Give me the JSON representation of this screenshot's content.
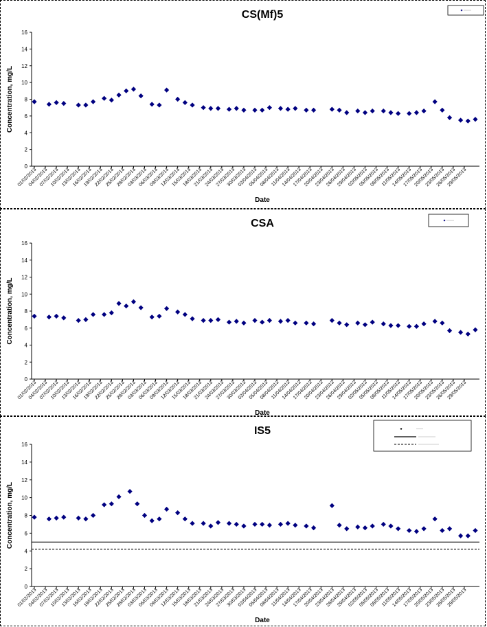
{
  "chart_data": [
    {
      "type": "scatter",
      "title": "CS(Mf)5",
      "xlabel": "Date",
      "ylabel": "Concentration, mg/L",
      "ylim": [
        0,
        16
      ],
      "ytick_step": 2,
      "x_tick_labels": [
        "01/02/2013",
        "04/02/2013",
        "07/02/2013",
        "10/02/2013",
        "13/02/2013",
        "16/02/2013",
        "19/02/2013",
        "22/02/2013",
        "25/02/2013",
        "28/02/2013",
        "03/03/2013",
        "06/03/2013",
        "09/03/2013",
        "12/03/2013",
        "15/03/2013",
        "18/03/2013",
        "21/03/2013",
        "24/03/2013",
        "27/03/2013",
        "30/03/2013",
        "02/04/2013",
        "05/04/2013",
        "08/04/2013",
        "11/04/2013",
        "14/04/2013",
        "17/04/2013",
        "20/04/2013",
        "23/04/2013",
        "26/04/2013",
        "29/04/2013",
        "02/05/2013",
        "05/05/2013",
        "08/05/2013",
        "11/05/2013",
        "14/05/2013",
        "17/05/2013",
        "20/05/2013",
        "23/05/2013",
        "26/05/2013",
        "29/05/2013"
      ],
      "marker_color": "#000080",
      "legend_position": "top-right",
      "series": [
        {
          "points": [
            [
              "01/02/2013",
              7.7
            ],
            [
              "05/02/2013",
              7.4
            ],
            [
              "07/02/2013",
              7.6
            ],
            [
              "09/02/2013",
              7.5
            ],
            [
              "13/02/2013",
              7.3
            ],
            [
              "15/02/2013",
              7.3
            ],
            [
              "17/02/2013",
              7.7
            ],
            [
              "20/02/2013",
              8.1
            ],
            [
              "22/02/2013",
              7.9
            ],
            [
              "24/02/2013",
              8.5
            ],
            [
              "26/02/2013",
              9.0
            ],
            [
              "28/02/2013",
              9.2
            ],
            [
              "02/03/2013",
              8.4
            ],
            [
              "05/03/2013",
              7.4
            ],
            [
              "07/03/2013",
              7.3
            ],
            [
              "09/03/2013",
              9.1
            ],
            [
              "12/03/2013",
              8.0
            ],
            [
              "14/03/2013",
              7.6
            ],
            [
              "16/03/2013",
              7.3
            ],
            [
              "19/03/2013",
              7.0
            ],
            [
              "21/03/2013",
              6.9
            ],
            [
              "23/03/2013",
              6.9
            ],
            [
              "26/03/2013",
              6.8
            ],
            [
              "28/03/2013",
              6.9
            ],
            [
              "30/03/2013",
              6.7
            ],
            [
              "02/04/2013",
              6.7
            ],
            [
              "04/04/2013",
              6.7
            ],
            [
              "06/04/2013",
              7.0
            ],
            [
              "09/04/2013",
              6.9
            ],
            [
              "11/04/2013",
              6.8
            ],
            [
              "13/04/2013",
              6.9
            ],
            [
              "16/04/2013",
              6.7
            ],
            [
              "18/04/2013",
              6.7
            ],
            [
              "23/04/2013",
              6.8
            ],
            [
              "25/04/2013",
              6.7
            ],
            [
              "27/04/2013",
              6.4
            ],
            [
              "30/04/2013",
              6.6
            ],
            [
              "02/05/2013",
              6.4
            ],
            [
              "04/05/2013",
              6.6
            ],
            [
              "07/05/2013",
              6.6
            ],
            [
              "09/05/2013",
              6.4
            ],
            [
              "11/05/2013",
              6.3
            ],
            [
              "14/05/2013",
              6.3
            ],
            [
              "16/05/2013",
              6.4
            ],
            [
              "18/05/2013",
              6.6
            ],
            [
              "21/05/2013",
              7.7
            ],
            [
              "23/05/2013",
              6.7
            ],
            [
              "25/05/2013",
              5.8
            ],
            [
              "28/05/2013",
              5.5
            ],
            [
              "30/05/2013",
              5.4
            ],
            [
              "01/06/2013",
              5.6
            ]
          ]
        }
      ]
    },
    {
      "type": "scatter",
      "title": "CSA",
      "xlabel": "Date",
      "ylabel": "Concentration, mg/L",
      "ylim": [
        0,
        16
      ],
      "ytick_step": 2,
      "x_tick_labels": [
        "01/02/2013",
        "04/02/2013",
        "07/02/2013",
        "10/02/2013",
        "13/02/2013",
        "16/02/2013",
        "19/02/2013",
        "22/02/2013",
        "25/02/2013",
        "28/02/2013",
        "03/03/2013",
        "06/03/2013",
        "09/03/2013",
        "12/03/2013",
        "15/03/2013",
        "18/03/2013",
        "21/03/2013",
        "24/03/2013",
        "27/03/2013",
        "30/03/2013",
        "02/04/2013",
        "05/04/2013",
        "08/04/2013",
        "11/04/2013",
        "14/04/2013",
        "17/04/2013",
        "20/04/2013",
        "23/04/2013",
        "26/04/2013",
        "29/04/2013",
        "02/05/2013",
        "05/05/2013",
        "08/05/2013",
        "11/05/2013",
        "14/05/2013",
        "17/05/2013",
        "20/05/2013",
        "23/05/2013",
        "26/05/2013",
        "29/05/2013"
      ],
      "marker_color": "#000080",
      "legend_position": "top-right",
      "series": [
        {
          "points": [
            [
              "01/02/2013",
              7.4
            ],
            [
              "05/02/2013",
              7.3
            ],
            [
              "07/02/2013",
              7.4
            ],
            [
              "09/02/2013",
              7.2
            ],
            [
              "13/02/2013",
              6.9
            ],
            [
              "15/02/2013",
              7.0
            ],
            [
              "17/02/2013",
              7.6
            ],
            [
              "20/02/2013",
              7.6
            ],
            [
              "22/02/2013",
              7.8
            ],
            [
              "24/02/2013",
              8.9
            ],
            [
              "26/02/2013",
              8.6
            ],
            [
              "28/02/2013",
              9.1
            ],
            [
              "02/03/2013",
              8.4
            ],
            [
              "05/03/2013",
              7.3
            ],
            [
              "07/03/2013",
              7.4
            ],
            [
              "09/03/2013",
              8.3
            ],
            [
              "12/03/2013",
              7.9
            ],
            [
              "14/03/2013",
              7.6
            ],
            [
              "16/03/2013",
              7.1
            ],
            [
              "19/03/2013",
              6.9
            ],
            [
              "21/03/2013",
              6.9
            ],
            [
              "23/03/2013",
              7.0
            ],
            [
              "26/03/2013",
              6.7
            ],
            [
              "28/03/2013",
              6.8
            ],
            [
              "30/03/2013",
              6.6
            ],
            [
              "02/04/2013",
              6.9
            ],
            [
              "04/04/2013",
              6.7
            ],
            [
              "06/04/2013",
              6.9
            ],
            [
              "09/04/2013",
              6.8
            ],
            [
              "11/04/2013",
              6.9
            ],
            [
              "13/04/2013",
              6.6
            ],
            [
              "16/04/2013",
              6.6
            ],
            [
              "18/04/2013",
              6.5
            ],
            [
              "23/04/2013",
              6.9
            ],
            [
              "25/04/2013",
              6.6
            ],
            [
              "27/04/2013",
              6.4
            ],
            [
              "30/04/2013",
              6.6
            ],
            [
              "02/05/2013",
              6.4
            ],
            [
              "04/05/2013",
              6.7
            ],
            [
              "07/05/2013",
              6.5
            ],
            [
              "09/05/2013",
              6.3
            ],
            [
              "11/05/2013",
              6.3
            ],
            [
              "14/05/2013",
              6.2
            ],
            [
              "16/05/2013",
              6.2
            ],
            [
              "18/05/2013",
              6.5
            ],
            [
              "21/05/2013",
              6.8
            ],
            [
              "23/05/2013",
              6.6
            ],
            [
              "25/05/2013",
              5.7
            ],
            [
              "28/05/2013",
              5.5
            ],
            [
              "30/05/2013",
              5.3
            ],
            [
              "01/06/2013",
              5.8
            ]
          ]
        }
      ]
    },
    {
      "type": "scatter",
      "title": "IS5",
      "xlabel": "Date",
      "ylabel": "Concentration, mg/L",
      "ylim": [
        0,
        16
      ],
      "ytick_step": 2,
      "x_tick_labels": [
        "01/02/2013",
        "04/02/2013",
        "07/02/2013",
        "10/02/2013",
        "13/02/2013",
        "16/02/2013",
        "19/02/2013",
        "22/02/2013",
        "25/02/2013",
        "28/02/2013",
        "03/03/2013",
        "06/03/2013",
        "09/03/2013",
        "12/03/2013",
        "15/03/2013",
        "18/03/2013",
        "21/03/2013",
        "24/03/2013",
        "27/03/2013",
        "30/03/2013",
        "02/04/2013",
        "05/04/2013",
        "08/04/2013",
        "11/04/2013",
        "14/04/2013",
        "17/04/2013",
        "20/04/2013",
        "23/04/2013",
        "26/04/2013",
        "29/04/2013",
        "02/05/2013",
        "05/05/2013",
        "08/05/2013",
        "11/05/2013",
        "14/05/2013",
        "17/05/2013",
        "20/05/2013",
        "23/05/2013",
        "26/05/2013",
        "29/05/2013"
      ],
      "marker_color": "#000080",
      "legend_position": "top-right",
      "reference_lines": [
        {
          "y": 5.0,
          "style": "solid"
        },
        {
          "y": 4.2,
          "style": "dashed"
        }
      ],
      "series": [
        {
          "points": [
            [
              "01/02/2013",
              7.8
            ],
            [
              "05/02/2013",
              7.6
            ],
            [
              "07/02/2013",
              7.7
            ],
            [
              "09/02/2013",
              7.8
            ],
            [
              "13/02/2013",
              7.7
            ],
            [
              "15/02/2013",
              7.6
            ],
            [
              "17/02/2013",
              8.0
            ],
            [
              "20/02/2013",
              9.2
            ],
            [
              "22/02/2013",
              9.3
            ],
            [
              "24/02/2013",
              10.1
            ],
            [
              "27/02/2013",
              10.7
            ],
            [
              "01/03/2013",
              9.3
            ],
            [
              "03/03/2013",
              8.0
            ],
            [
              "05/03/2013",
              7.4
            ],
            [
              "07/03/2013",
              7.6
            ],
            [
              "09/03/2013",
              8.7
            ],
            [
              "12/03/2013",
              8.3
            ],
            [
              "14/03/2013",
              7.6
            ],
            [
              "16/03/2013",
              7.1
            ],
            [
              "19/03/2013",
              7.1
            ],
            [
              "21/03/2013",
              6.8
            ],
            [
              "23/03/2013",
              7.2
            ],
            [
              "26/03/2013",
              7.1
            ],
            [
              "28/03/2013",
              7.0
            ],
            [
              "30/03/2013",
              6.8
            ],
            [
              "02/04/2013",
              7.0
            ],
            [
              "04/04/2013",
              7.0
            ],
            [
              "06/04/2013",
              6.9
            ],
            [
              "09/04/2013",
              7.0
            ],
            [
              "11/04/2013",
              7.1
            ],
            [
              "13/04/2013",
              6.9
            ],
            [
              "16/04/2013",
              6.8
            ],
            [
              "18/04/2013",
              6.6
            ],
            [
              "23/04/2013",
              9.1
            ],
            [
              "25/04/2013",
              6.9
            ],
            [
              "27/04/2013",
              6.5
            ],
            [
              "30/04/2013",
              6.7
            ],
            [
              "02/05/2013",
              6.6
            ],
            [
              "04/05/2013",
              6.8
            ],
            [
              "07/05/2013",
              7.0
            ],
            [
              "09/05/2013",
              6.8
            ],
            [
              "11/05/2013",
              6.5
            ],
            [
              "14/05/2013",
              6.3
            ],
            [
              "16/05/2013",
              6.2
            ],
            [
              "18/05/2013",
              6.5
            ],
            [
              "21/05/2013",
              7.6
            ],
            [
              "23/05/2013",
              6.3
            ],
            [
              "25/05/2013",
              6.5
            ],
            [
              "28/05/2013",
              5.7
            ],
            [
              "30/05/2013",
              5.7
            ],
            [
              "01/06/2013",
              6.3
            ]
          ]
        }
      ]
    }
  ]
}
